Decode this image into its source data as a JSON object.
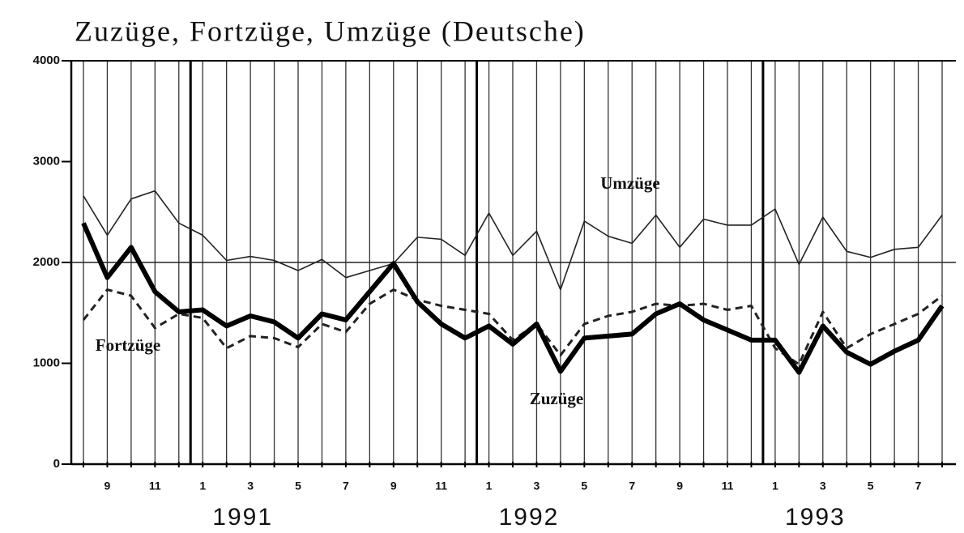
{
  "chart_data": {
    "type": "line",
    "title": "Zuzüge, Fortzüge, Umzüge (Deutsche)",
    "categories": [
      null,
      "9",
      null,
      "11",
      null,
      "1",
      null,
      "3",
      null,
      "5",
      null,
      "7",
      null,
      "9",
      null,
      "11",
      null,
      "1",
      null,
      "3",
      null,
      "5",
      null,
      "7",
      null,
      "9",
      null,
      "11",
      null,
      "1",
      null,
      "3",
      null,
      "5",
      null,
      "7",
      null
    ],
    "year_labels": [
      "1991",
      "1992",
      "1993"
    ],
    "series": [
      {
        "name": "Umzüge",
        "color": "#222222",
        "linestyle": "solid",
        "weight": "thin",
        "values": [
          2660,
          2270,
          2630,
          2710,
          2390,
          2270,
          2020,
          2060,
          2020,
          1920,
          2030,
          1850,
          1920,
          1990,
          2250,
          2230,
          2070,
          2490,
          2070,
          2310,
          1730,
          2410,
          2260,
          2190,
          2470,
          2150,
          2430,
          2370,
          2370,
          2530,
          1980,
          2450,
          2110,
          2050,
          2130,
          2150,
          2470
        ]
      },
      {
        "name": "Fortzüge",
        "color": "#222222",
        "linestyle": "dashed",
        "weight": "medium",
        "values": [
          1430,
          1730,
          1670,
          1350,
          1490,
          1450,
          1150,
          1270,
          1250,
          1160,
          1390,
          1310,
          1590,
          1730,
          1630,
          1570,
          1530,
          1490,
          1230,
          1390,
          1080,
          1390,
          1470,
          1510,
          1590,
          1570,
          1590,
          1530,
          1570,
          1150,
          990,
          1510,
          1150,
          1290,
          1390,
          1490,
          1670
        ]
      },
      {
        "name": "Zuzüge",
        "color": "#000000",
        "linestyle": "solid",
        "weight": "bold",
        "values": [
          2390,
          1850,
          2150,
          1710,
          1510,
          1530,
          1370,
          1470,
          1410,
          1250,
          1490,
          1430,
          1710,
          1990,
          1610,
          1390,
          1250,
          1370,
          1190,
          1390,
          920,
          1250,
          1270,
          1290,
          1490,
          1590,
          1430,
          1330,
          1230,
          1230,
          910,
          1370,
          1110,
          990,
          1120,
          1230,
          1570
        ]
      }
    ],
    "ylim": [
      0,
      4000
    ],
    "yticks": [
      0,
      1000,
      2000,
      3000,
      4000
    ],
    "reference_line": 2000,
    "grid": "vertical"
  }
}
